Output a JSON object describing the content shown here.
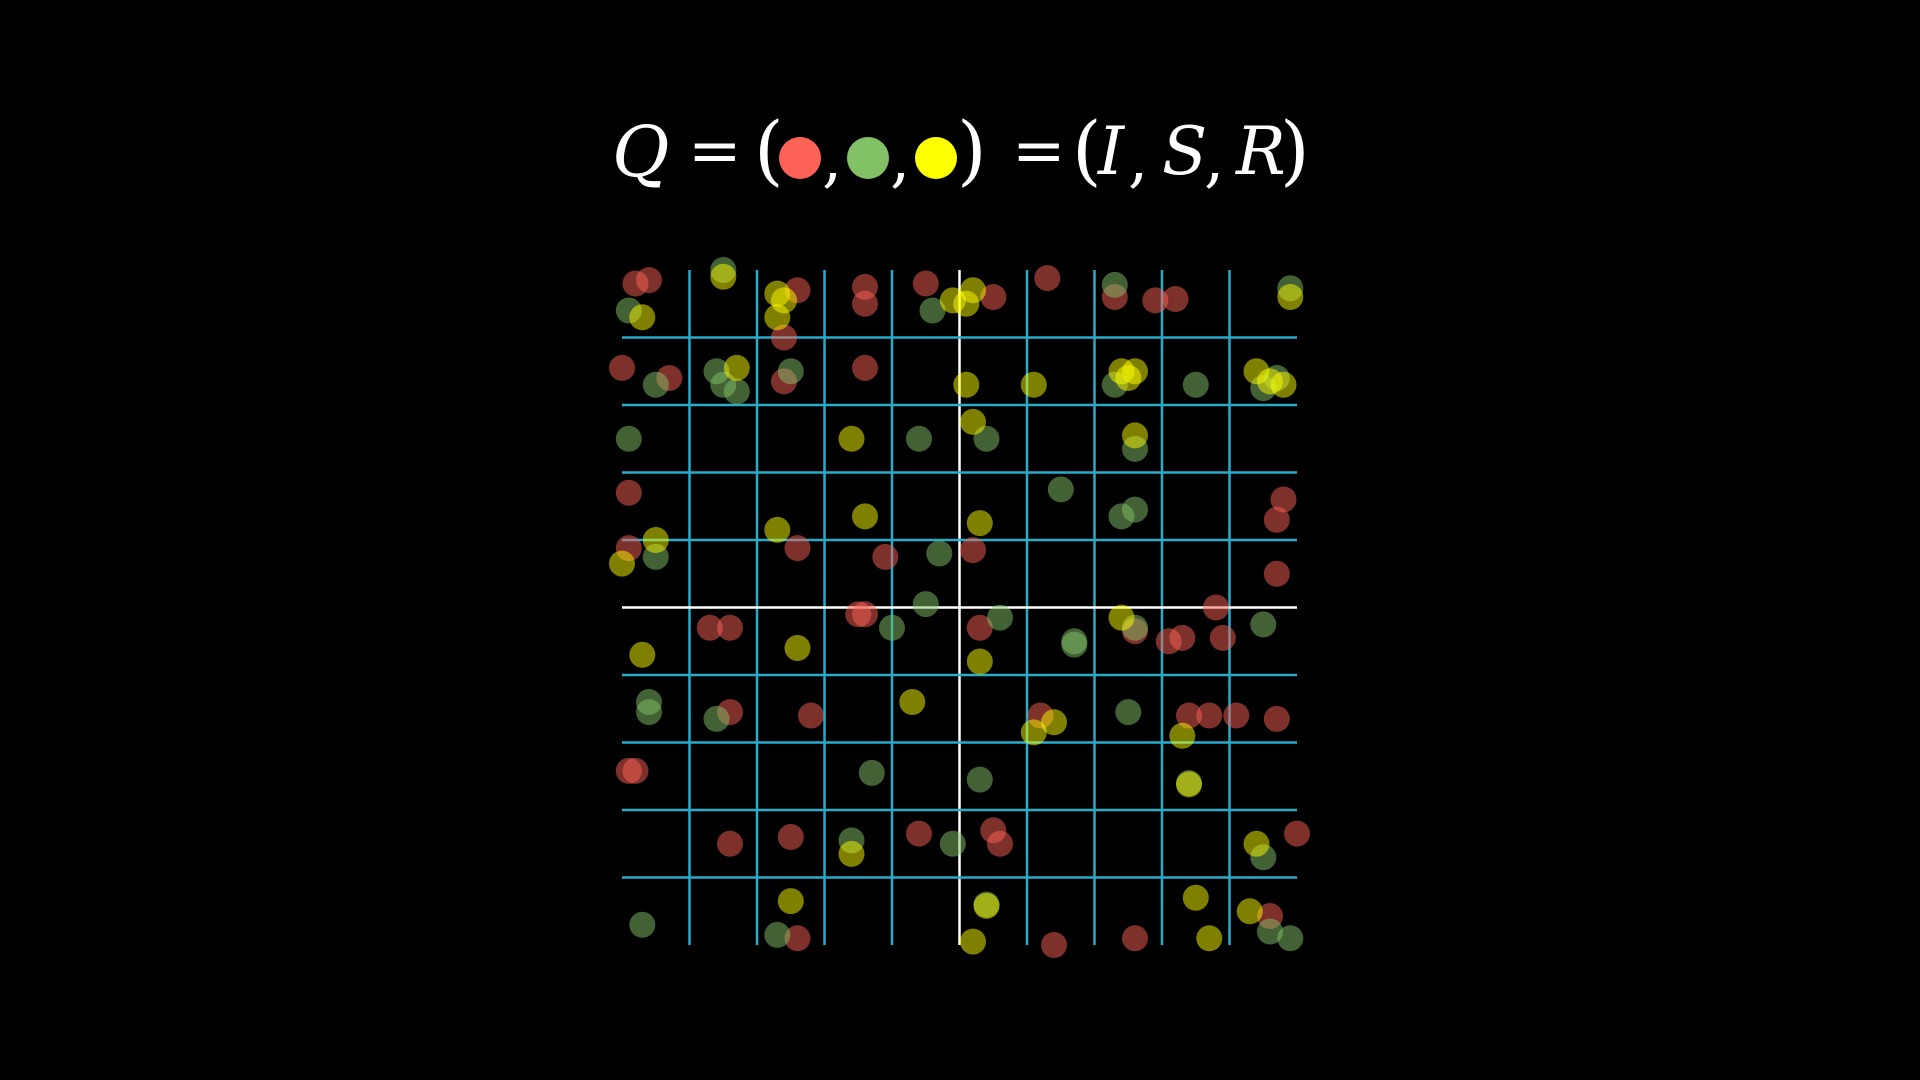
{
  "formula": {
    "lhs": "Q",
    "equals": "=",
    "open_paren": "(",
    "comma": ",",
    "close_paren": ")",
    "state_labels": [
      "I",
      "S",
      "R"
    ]
  },
  "colors": {
    "background": "#000000",
    "infected": "#fc6255",
    "susceptible": "#83c167",
    "recovered": "#ffff00",
    "grid_line": "#29abca",
    "axis_line": "#ffffff",
    "text": "#ffffff"
  },
  "legend_dots": [
    {
      "name": "infected",
      "color": "#fc6255"
    },
    {
      "name": "susceptible",
      "color": "#83c167"
    },
    {
      "name": "recovered",
      "color": "#ffff00"
    }
  ],
  "grid": {
    "cells_per_side": 10,
    "center_lines": true
  },
  "chart_data": {
    "type": "scatter",
    "xlim": [
      0,
      10
    ],
    "ylim": [
      0,
      10
    ],
    "grid": true,
    "series": [
      {
        "color": "#fc6255",
        "points": [
          [
            0.2,
            9.8
          ],
          [
            0.4,
            9.85
          ],
          [
            0.0,
            8.55
          ],
          [
            0.1,
            6.7
          ],
          [
            2.4,
            9.0
          ],
          [
            2.6,
            9.7
          ],
          [
            3.6,
            9.5
          ],
          [
            3.6,
            9.75
          ],
          [
            4.5,
            9.8
          ],
          [
            5.5,
            9.6
          ],
          [
            6.3,
            9.88
          ],
          [
            7.3,
            9.6
          ],
          [
            7.9,
            9.55
          ],
          [
            8.2,
            9.57
          ],
          [
            0.7,
            8.4
          ],
          [
            2.4,
            8.35
          ],
          [
            3.6,
            8.55
          ],
          [
            1.6,
            4.7
          ],
          [
            3.5,
            4.9
          ],
          [
            3.6,
            4.9
          ],
          [
            5.3,
            4.7
          ],
          [
            7.6,
            4.65
          ],
          [
            8.1,
            4.5
          ],
          [
            8.3,
            4.55
          ],
          [
            0.1,
            5.88
          ],
          [
            2.6,
            5.88
          ],
          [
            3.9,
            5.75
          ],
          [
            5.2,
            5.85
          ],
          [
            0.1,
            2.58
          ],
          [
            1.3,
            4.7
          ],
          [
            0.2,
            2.58
          ],
          [
            1.6,
            3.45
          ],
          [
            2.8,
            3.4
          ],
          [
            8.7,
            3.4
          ],
          [
            8.4,
            3.4
          ],
          [
            9.1,
            3.4
          ],
          [
            1.6,
            1.5
          ],
          [
            2.5,
            1.6
          ],
          [
            4.4,
            1.65
          ],
          [
            5.5,
            1.7
          ],
          [
            5.6,
            1.5
          ],
          [
            10.0,
            1.65
          ],
          [
            2.6,
            0.1
          ],
          [
            6.4,
            0.0
          ],
          [
            7.6,
            0.1
          ],
          [
            9.6,
            0.43
          ],
          [
            9.7,
            6.3
          ],
          [
            9.8,
            6.6
          ],
          [
            9.7,
            5.5
          ],
          [
            9.7,
            3.35
          ],
          [
            8.9,
            4.55
          ],
          [
            8.8,
            5.0
          ],
          [
            6.2,
            3.4
          ]
        ]
      },
      {
        "color": "#83c167",
        "points": [
          [
            0.1,
            9.4
          ],
          [
            1.5,
            10.0
          ],
          [
            4.6,
            9.4
          ],
          [
            7.3,
            9.78
          ],
          [
            9.9,
            9.73
          ],
          [
            0.5,
            8.3
          ],
          [
            1.4,
            8.5
          ],
          [
            1.5,
            8.3
          ],
          [
            1.7,
            8.2
          ],
          [
            2.5,
            8.5
          ],
          [
            7.3,
            8.3
          ],
          [
            8.5,
            8.3
          ],
          [
            9.5,
            8.25
          ],
          [
            9.7,
            8.4
          ],
          [
            0.1,
            7.5
          ],
          [
            4.4,
            7.5
          ],
          [
            5.4,
            7.5
          ],
          [
            6.5,
            6.75
          ],
          [
            7.4,
            6.35
          ],
          [
            7.6,
            7.35
          ],
          [
            4.0,
            4.7
          ],
          [
            4.5,
            5.05
          ],
          [
            5.6,
            4.85
          ],
          [
            7.6,
            4.7
          ],
          [
            6.7,
            4.5
          ],
          [
            9.5,
            4.75
          ],
          [
            6.7,
            4.45
          ],
          [
            0.4,
            3.6
          ],
          [
            0.4,
            3.45
          ],
          [
            1.4,
            3.35
          ],
          [
            7.5,
            3.45
          ],
          [
            3.7,
            2.55
          ],
          [
            5.3,
            2.45
          ],
          [
            8.4,
            2.4
          ],
          [
            3.4,
            1.55
          ],
          [
            4.9,
            1.5
          ],
          [
            5.4,
            0.6
          ],
          [
            9.5,
            1.3
          ],
          [
            0.3,
            0.3
          ],
          [
            2.3,
            0.15
          ],
          [
            9.6,
            0.2
          ],
          [
            9.9,
            0.1
          ],
          [
            0.5,
            5.75
          ],
          [
            4.7,
            5.8
          ],
          [
            7.6,
            6.45
          ]
        ]
      },
      {
        "color": "#ffff00",
        "points": [
          [
            0.3,
            9.3
          ],
          [
            1.5,
            9.9
          ],
          [
            2.3,
            9.65
          ],
          [
            2.4,
            9.55
          ],
          [
            2.3,
            9.3
          ],
          [
            5.2,
            9.7
          ],
          [
            4.9,
            9.55
          ],
          [
            5.1,
            9.5
          ],
          [
            7.4,
            8.5
          ],
          [
            9.4,
            8.5
          ],
          [
            9.6,
            8.35
          ],
          [
            1.7,
            8.55
          ],
          [
            5.1,
            8.3
          ],
          [
            6.1,
            8.3
          ],
          [
            7.6,
            8.5
          ],
          [
            7.5,
            8.4
          ],
          [
            3.4,
            7.5
          ],
          [
            5.2,
            7.75
          ],
          [
            7.6,
            7.55
          ],
          [
            2.3,
            6.15
          ],
          [
            3.6,
            6.35
          ],
          [
            5.3,
            6.25
          ],
          [
            0.5,
            6.0
          ],
          [
            0.0,
            5.65
          ],
          [
            7.4,
            4.85
          ],
          [
            0.3,
            4.3
          ],
          [
            2.6,
            4.4
          ],
          [
            5.3,
            4.2
          ],
          [
            4.3,
            3.6
          ],
          [
            6.4,
            3.3
          ],
          [
            6.1,
            3.15
          ],
          [
            8.4,
            2.38
          ],
          [
            3.4,
            1.35
          ],
          [
            9.4,
            1.5
          ],
          [
            2.5,
            0.65
          ],
          [
            5.4,
            0.58
          ],
          [
            5.2,
            0.05
          ],
          [
            8.5,
            0.7
          ],
          [
            8.7,
            0.1
          ],
          [
            9.3,
            0.5
          ],
          [
            9.8,
            8.3
          ],
          [
            9.9,
            9.6
          ],
          [
            8.3,
            3.1
          ]
        ]
      }
    ]
  }
}
